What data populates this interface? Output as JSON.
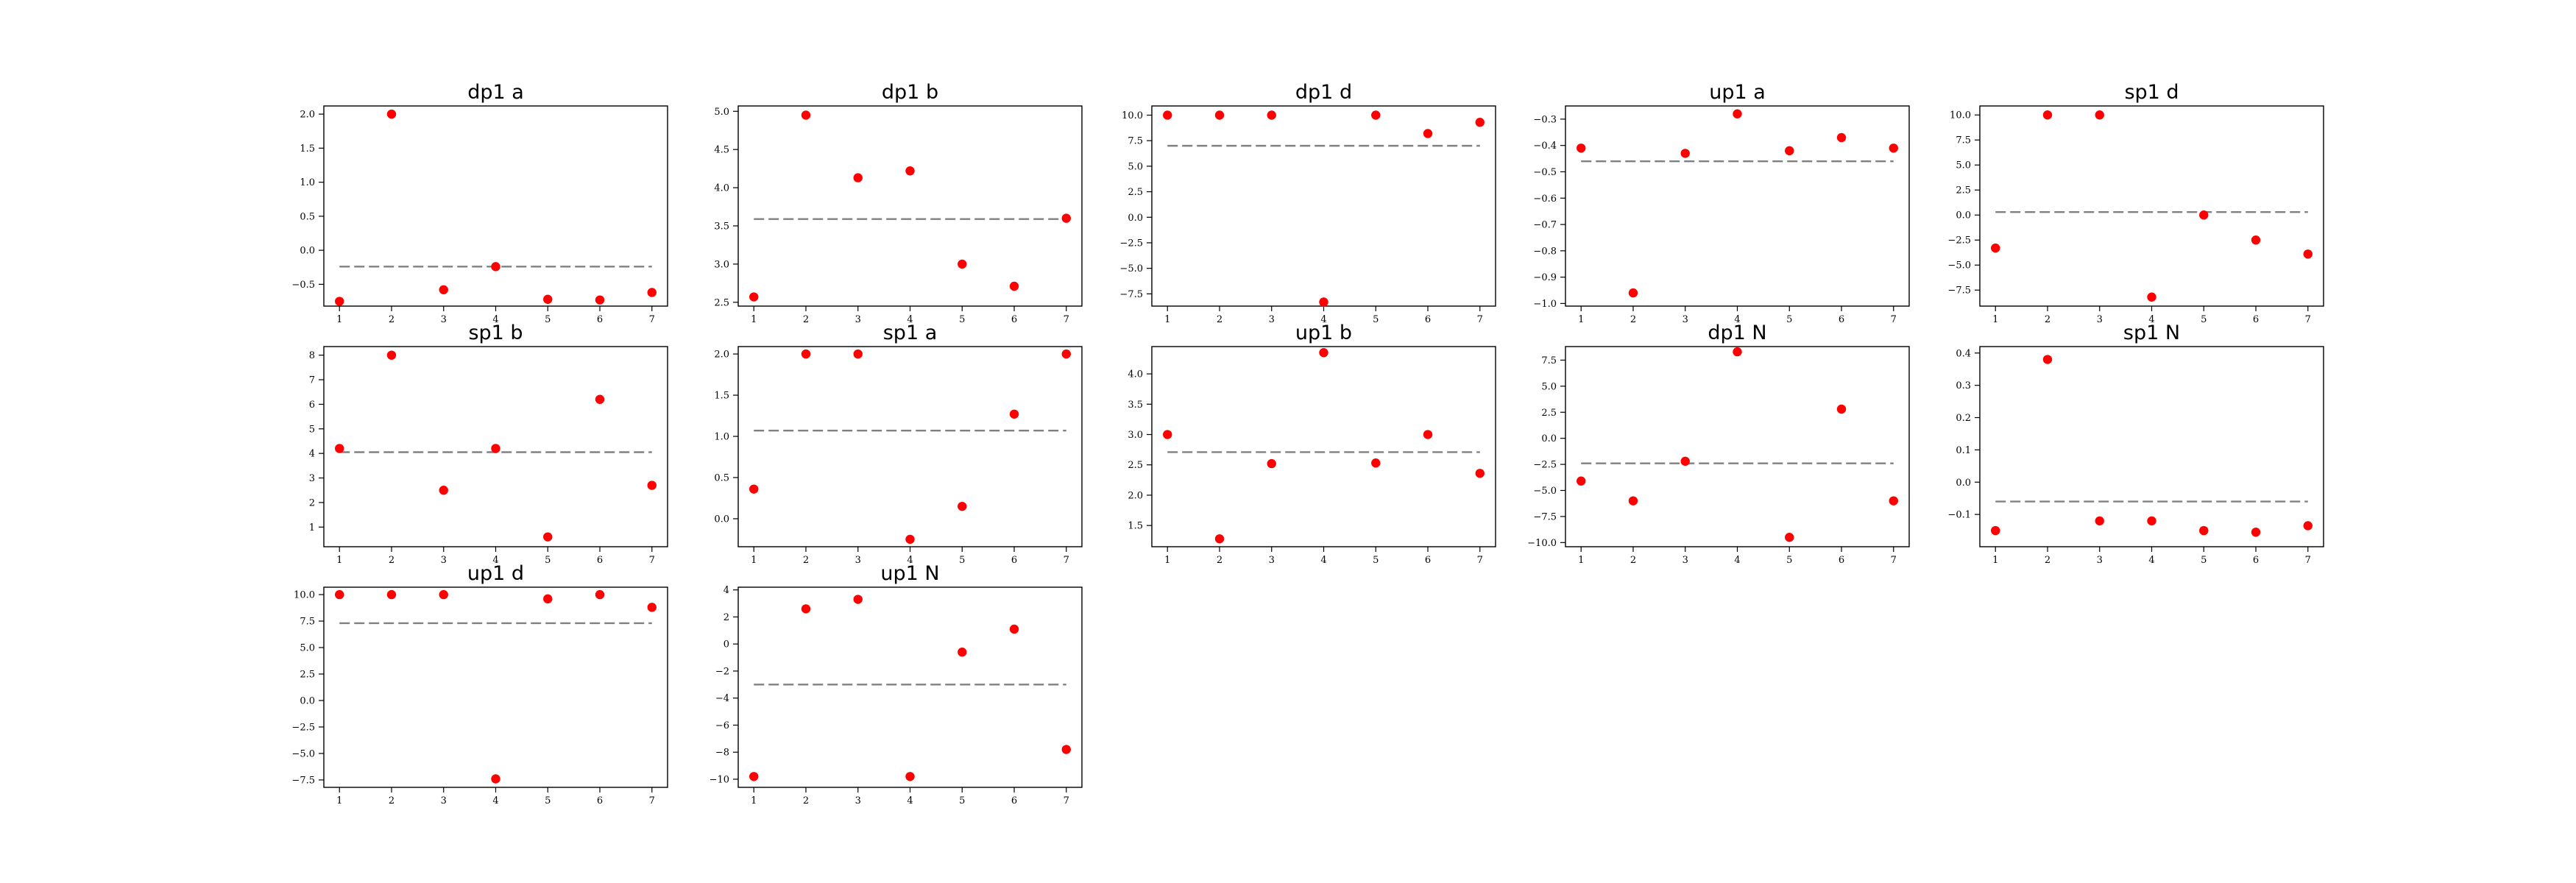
{
  "chart_data": [
    {
      "type": "scatter",
      "title": "dp1 a",
      "x": [
        1,
        2,
        3,
        4,
        5,
        6,
        7
      ],
      "values": [
        -0.75,
        2.0,
        -0.58,
        -0.24,
        -0.72,
        -0.73,
        -0.62
      ],
      "reference_line": -0.24,
      "xlim": [
        0.7,
        7.3
      ],
      "ylim": [
        -0.82,
        2.12
      ],
      "yticks": [
        -0.5,
        0.0,
        0.5,
        1.0,
        1.5,
        2.0
      ],
      "ytick_labels": [
        "−0.5",
        "0.0",
        "0.5",
        "1.0",
        "1.5",
        "2.0"
      ],
      "xticks": [
        1,
        2,
        3,
        4,
        5,
        6,
        7
      ],
      "xtick_labels": [
        "1",
        "2",
        "3",
        "4",
        "5",
        "6",
        "7"
      ],
      "grid": false,
      "point_color": "#ff0000",
      "line_color": "#808080"
    },
    {
      "type": "scatter",
      "title": "dp1 b",
      "x": [
        1,
        2,
        3,
        4,
        5,
        6,
        7
      ],
      "values": [
        2.57,
        4.95,
        4.13,
        4.22,
        3.0,
        2.71,
        3.6
      ],
      "reference_line": 3.59,
      "xlim": [
        0.7,
        7.3
      ],
      "ylim": [
        2.45,
        5.07
      ],
      "yticks": [
        2.5,
        3.0,
        3.5,
        4.0,
        4.5,
        5.0
      ],
      "ytick_labels": [
        "2.5",
        "3.0",
        "3.5",
        "4.0",
        "4.5",
        "5.0"
      ],
      "xticks": [
        1,
        2,
        3,
        4,
        5,
        6,
        7
      ],
      "xtick_labels": [
        "1",
        "2",
        "3",
        "4",
        "5",
        "6",
        "7"
      ],
      "grid": false,
      "point_color": "#ff0000",
      "line_color": "#808080"
    },
    {
      "type": "scatter",
      "title": "dp1 d",
      "x": [
        1,
        2,
        3,
        4,
        5,
        6,
        7
      ],
      "values": [
        10.0,
        10.0,
        10.0,
        -8.3,
        10.0,
        8.2,
        9.3
      ],
      "reference_line": 7.0,
      "xlim": [
        0.7,
        7.3
      ],
      "ylim": [
        -8.7,
        10.9
      ],
      "yticks": [
        -7.5,
        -5.0,
        -2.5,
        0.0,
        2.5,
        5.0,
        7.5,
        10.0
      ],
      "ytick_labels": [
        "−7.5",
        "−5.0",
        "−2.5",
        "0.0",
        "2.5",
        "5.0",
        "7.5",
        "10.0"
      ],
      "xticks": [
        1,
        2,
        3,
        4,
        5,
        6,
        7
      ],
      "xtick_labels": [
        "1",
        "2",
        "3",
        "4",
        "5",
        "6",
        "7"
      ],
      "grid": false,
      "point_color": "#ff0000",
      "line_color": "#808080"
    },
    {
      "type": "scatter",
      "title": "up1 a",
      "x": [
        1,
        2,
        3,
        4,
        5,
        6,
        7
      ],
      "values": [
        -0.41,
        -0.96,
        -0.43,
        -0.28,
        -0.42,
        -0.37,
        -0.41
      ],
      "reference_line": -0.46,
      "xlim": [
        0.7,
        7.3
      ],
      "ylim": [
        -1.01,
        -0.25
      ],
      "yticks": [
        -1.0,
        -0.9,
        -0.8,
        -0.7,
        -0.6,
        -0.5,
        -0.4,
        -0.3
      ],
      "ytick_labels": [
        "−1.0",
        "−0.9",
        "−0.8",
        "−0.7",
        "−0.6",
        "−0.5",
        "−0.4",
        "−0.3"
      ],
      "xticks": [
        1,
        2,
        3,
        4,
        5,
        6,
        7
      ],
      "xtick_labels": [
        "1",
        "2",
        "3",
        "4",
        "5",
        "6",
        "7"
      ],
      "grid": false,
      "point_color": "#ff0000",
      "line_color": "#808080"
    },
    {
      "type": "scatter",
      "title": "sp1 d",
      "x": [
        1,
        2,
        3,
        4,
        5,
        6,
        7
      ],
      "values": [
        -3.3,
        10.0,
        10.0,
        -8.2,
        0.0,
        -2.5,
        -3.9
      ],
      "reference_line": 0.3,
      "xlim": [
        0.7,
        7.3
      ],
      "ylim": [
        -9.1,
        10.9
      ],
      "yticks": [
        -7.5,
        -5.0,
        -2.5,
        0.0,
        2.5,
        5.0,
        7.5,
        10.0
      ],
      "ytick_labels": [
        "−7.5",
        "−5.0",
        "−2.5",
        "0.0",
        "2.5",
        "5.0",
        "7.5",
        "10.0"
      ],
      "xticks": [
        1,
        2,
        3,
        4,
        5,
        6,
        7
      ],
      "xtick_labels": [
        "1",
        "2",
        "3",
        "4",
        "5",
        "6",
        "7"
      ],
      "grid": false,
      "point_color": "#ff0000",
      "line_color": "#808080"
    },
    {
      "type": "scatter",
      "title": "sp1 b",
      "x": [
        1,
        2,
        3,
        4,
        5,
        6,
        7
      ],
      "values": [
        4.2,
        8.0,
        2.5,
        4.2,
        0.6,
        6.2,
        2.7
      ],
      "reference_line": 4.05,
      "xlim": [
        0.7,
        7.3
      ],
      "ylim": [
        0.2,
        8.35
      ],
      "yticks": [
        1,
        2,
        3,
        4,
        5,
        6,
        7,
        8
      ],
      "ytick_labels": [
        "1",
        "2",
        "3",
        "4",
        "5",
        "6",
        "7",
        "8"
      ],
      "xticks": [
        1,
        2,
        3,
        4,
        5,
        6,
        7
      ],
      "xtick_labels": [
        "1",
        "2",
        "3",
        "4",
        "5",
        "6",
        "7"
      ],
      "grid": false,
      "point_color": "#ff0000",
      "line_color": "#808080"
    },
    {
      "type": "scatter",
      "title": "sp1 a",
      "x": [
        1,
        2,
        3,
        4,
        5,
        6,
        7
      ],
      "values": [
        0.36,
        2.0,
        2.0,
        -0.25,
        0.15,
        1.27,
        2.0
      ],
      "reference_line": 1.07,
      "xlim": [
        0.7,
        7.3
      ],
      "ylim": [
        -0.34,
        2.09
      ],
      "yticks": [
        0.0,
        0.5,
        1.0,
        1.5,
        2.0
      ],
      "ytick_labels": [
        "0.0",
        "0.5",
        "1.0",
        "1.5",
        "2.0"
      ],
      "xticks": [
        1,
        2,
        3,
        4,
        5,
        6,
        7
      ],
      "xtick_labels": [
        "1",
        "2",
        "3",
        "4",
        "5",
        "6",
        "7"
      ],
      "grid": false,
      "point_color": "#ff0000",
      "line_color": "#808080"
    },
    {
      "type": "scatter",
      "title": "up1 b",
      "x": [
        1,
        2,
        3,
        4,
        5,
        6,
        7
      ],
      "values": [
        3.0,
        1.28,
        2.52,
        4.35,
        2.53,
        3.0,
        2.36
      ],
      "reference_line": 2.71,
      "xlim": [
        0.7,
        7.3
      ],
      "ylim": [
        1.15,
        4.45
      ],
      "yticks": [
        1.5,
        2.0,
        2.5,
        3.0,
        3.5,
        4.0
      ],
      "ytick_labels": [
        "1.5",
        "2.0",
        "2.5",
        "3.0",
        "3.5",
        "4.0"
      ],
      "xticks": [
        1,
        2,
        3,
        4,
        5,
        6,
        7
      ],
      "xtick_labels": [
        "1",
        "2",
        "3",
        "4",
        "5",
        "6",
        "7"
      ],
      "grid": false,
      "point_color": "#ff0000",
      "line_color": "#808080"
    },
    {
      "type": "scatter",
      "title": "dp1 N",
      "x": [
        1,
        2,
        3,
        4,
        5,
        6,
        7
      ],
      "values": [
        -4.1,
        -6.0,
        -2.2,
        8.3,
        -9.5,
        2.8,
        -6.0
      ],
      "reference_line": -2.4,
      "xlim": [
        0.7,
        7.3
      ],
      "ylim": [
        -10.4,
        8.8
      ],
      "yticks": [
        -10.0,
        -7.5,
        -5.0,
        -2.5,
        0.0,
        2.5,
        5.0,
        7.5
      ],
      "ytick_labels": [
        "−10.0",
        "−7.5",
        "−5.0",
        "−2.5",
        "0.0",
        "2.5",
        "5.0",
        "7.5"
      ],
      "xticks": [
        1,
        2,
        3,
        4,
        5,
        6,
        7
      ],
      "xtick_labels": [
        "1",
        "2",
        "3",
        "4",
        "5",
        "6",
        "7"
      ],
      "grid": false,
      "point_color": "#ff0000",
      "line_color": "#808080"
    },
    {
      "type": "scatter",
      "title": "sp1 N",
      "x": [
        1,
        2,
        3,
        4,
        5,
        6,
        7
      ],
      "values": [
        -0.15,
        0.38,
        -0.12,
        -0.12,
        -0.15,
        -0.155,
        -0.135
      ],
      "reference_line": -0.06,
      "xlim": [
        0.7,
        7.3
      ],
      "ylim": [
        -0.2,
        0.42
      ],
      "yticks": [
        -0.1,
        0.0,
        0.1,
        0.2,
        0.3,
        0.4
      ],
      "ytick_labels": [
        "−0.1",
        "0.0",
        "0.1",
        "0.2",
        "0.3",
        "0.4"
      ],
      "xticks": [
        1,
        2,
        3,
        4,
        5,
        6,
        7
      ],
      "xtick_labels": [
        "1",
        "2",
        "3",
        "4",
        "5",
        "6",
        "7"
      ],
      "grid": false,
      "point_color": "#ff0000",
      "line_color": "#808080"
    },
    {
      "type": "scatter",
      "title": "up1 d",
      "x": [
        1,
        2,
        3,
        4,
        5,
        6,
        7
      ],
      "values": [
        10.0,
        10.0,
        10.0,
        -7.4,
        9.6,
        10.0,
        8.8
      ],
      "reference_line": 7.3,
      "xlim": [
        0.7,
        7.3
      ],
      "ylim": [
        -8.2,
        10.7
      ],
      "yticks": [
        -7.5,
        -5.0,
        -2.5,
        0.0,
        2.5,
        5.0,
        7.5,
        10.0
      ],
      "ytick_labels": [
        "−7.5",
        "−5.0",
        "−2.5",
        "0.0",
        "2.5",
        "5.0",
        "7.5",
        "10.0"
      ],
      "xticks": [
        1,
        2,
        3,
        4,
        5,
        6,
        7
      ],
      "xtick_labels": [
        "1",
        "2",
        "3",
        "4",
        "5",
        "6",
        "7"
      ],
      "grid": false,
      "point_color": "#ff0000",
      "line_color": "#808080"
    },
    {
      "type": "scatter",
      "title": "up1 N",
      "x": [
        1,
        2,
        3,
        4,
        5,
        6,
        7
      ],
      "values": [
        -9.8,
        2.6,
        3.3,
        -9.8,
        -0.6,
        1.1,
        -7.8
      ],
      "reference_line": -3.0,
      "xlim": [
        0.7,
        7.3
      ],
      "ylim": [
        -10.6,
        4.2
      ],
      "yticks": [
        -10,
        -8,
        -6,
        -4,
        -2,
        0,
        2,
        4
      ],
      "ytick_labels": [
        "−10",
        "−8",
        "−6",
        "−4",
        "−2",
        "0",
        "2",
        "4"
      ],
      "xticks": [
        1,
        2,
        3,
        4,
        5,
        6,
        7
      ],
      "xtick_labels": [
        "1",
        "2",
        "3",
        "4",
        "5",
        "6",
        "7"
      ],
      "grid": false,
      "point_color": "#ff0000",
      "line_color": "#808080"
    }
  ]
}
